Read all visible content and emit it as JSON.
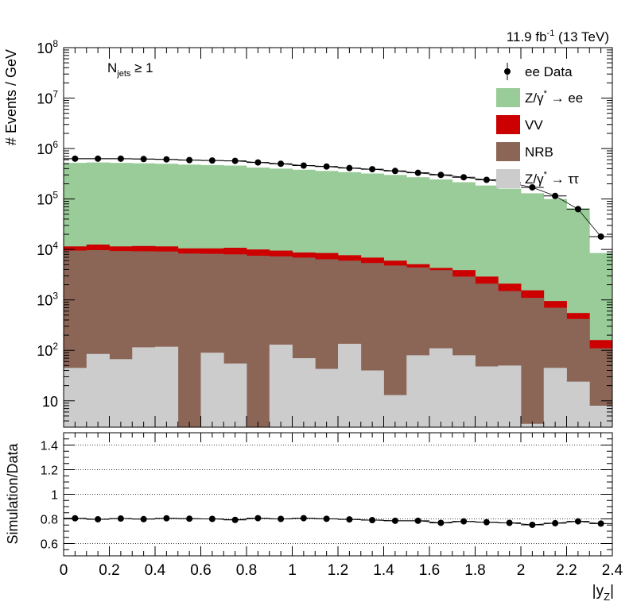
{
  "chart_data": [
    {
      "type": "bar",
      "stacked": true,
      "y_scale": "log",
      "ylim": [
        3,
        100000000
      ],
      "xlim": [
        0,
        2.4
      ],
      "ylabel": "# Events / GeV",
      "lumi_label": "11.9 fb",
      "lumi_sup": "-1",
      "energy_label": "(13 TeV)",
      "selection_label": {
        "main": "N",
        "sub": "jets",
        "rest": " ≥ 1"
      },
      "y_tick_labels": [
        {
          "value": 10,
          "label": "10"
        },
        {
          "value": 100,
          "label": "10",
          "exp": "2"
        },
        {
          "value": 1000,
          "label": "10",
          "exp": "3"
        },
        {
          "value": 10000,
          "label": "10",
          "exp": "4"
        },
        {
          "value": 100000,
          "label": "10",
          "exp": "5"
        },
        {
          "value": 1000000,
          "label": "10",
          "exp": "6"
        },
        {
          "value": 10000000,
          "label": "10",
          "exp": "7"
        },
        {
          "value": 100000000,
          "label": "10",
          "exp": "8"
        }
      ],
      "bin_edges": [
        0,
        0.1,
        0.2,
        0.3,
        0.4,
        0.5,
        0.6,
        0.7,
        0.8,
        0.9,
        1.0,
        1.1,
        1.2,
        1.3,
        1.4,
        1.5,
        1.6,
        1.7,
        1.8,
        1.9,
        2.0,
        2.1,
        2.2,
        2.3,
        2.4
      ],
      "legend": [
        {
          "key": "data",
          "label": "ee Data",
          "style": "marker"
        },
        {
          "key": "zee",
          "label": "Z/γ",
          "sup": "*",
          "tail": " → ee",
          "style": "fill"
        },
        {
          "key": "vv",
          "label": "VV",
          "style": "fill"
        },
        {
          "key": "nrb",
          "label": "NRB",
          "style": "fill"
        },
        {
          "key": "ztt",
          "label": "Z/γ",
          "sup": "*",
          "tail": " → ττ",
          "style": "fill"
        }
      ],
      "stack_totals": {
        "ztt": [
          45,
          85,
          67,
          115,
          118,
          0,
          90,
          55,
          0,
          130,
          70,
          43,
          135,
          40,
          13,
          80,
          110,
          80,
          48,
          50,
          3.5,
          45,
          24,
          8
        ],
        "nrb": [
          9500,
          9700,
          9300,
          9200,
          9100,
          8300,
          8200,
          8000,
          7500,
          7300,
          6900,
          6400,
          6000,
          5400,
          4800,
          4400,
          3900,
          2900,
          2100,
          1500,
          1100,
          700,
          420,
          110
        ],
        "vv": [
          11500,
          12500,
          11500,
          11700,
          11500,
          10500,
          10500,
          10800,
          10000,
          9500,
          8700,
          8500,
          7700,
          6900,
          6000,
          5100,
          4300,
          3900,
          2900,
          2100,
          1550,
          950,
          550,
          160
        ],
        "zee": [
          520000,
          530000,
          520000,
          510000,
          500000,
          480000,
          470000,
          460000,
          420000,
          400000,
          380000,
          360000,
          340000,
          320000,
          300000,
          270000,
          245000,
          215000,
          185000,
          160000,
          130000,
          100000,
          65000,
          8500
        ]
      },
      "colors": {
        "zee": "#99cc99",
        "vv": "#cc0000",
        "nrb": "#8b6556",
        "ztt": "#cccccc",
        "data": "#000000"
      },
      "data_points": {
        "x": [
          0.05,
          0.15,
          0.25,
          0.35,
          0.45,
          0.55,
          0.65,
          0.75,
          0.85,
          0.95,
          1.05,
          1.15,
          1.25,
          1.35,
          1.45,
          1.55,
          1.65,
          1.75,
          1.85,
          1.95,
          2.05,
          2.15,
          2.25,
          2.35
        ],
        "y": [
          630000,
          630000,
          630000,
          620000,
          610000,
          590000,
          580000,
          570000,
          530000,
          500000,
          460000,
          440000,
          410000,
          390000,
          360000,
          330000,
          300000,
          270000,
          240000,
          210000,
          170000,
          115000,
          63000,
          18000
        ]
      }
    },
    {
      "type": "scatter",
      "ylabel": "Simulation/Data",
      "xlabel": "|y",
      "xlabel_sub": "Z",
      "xlabel_tail": "|",
      "xlim": [
        0,
        2.4
      ],
      "ylim": [
        0.5,
        1.5
      ],
      "grid_lines": [
        0.6,
        0.8,
        1.0,
        1.2,
        1.4
      ],
      "y_tick_labels": [
        "0.6",
        "0.8",
        "1",
        "1.2",
        "1.4"
      ],
      "x_tick_labels": [
        "0",
        "0.2",
        "0.4",
        "0.6",
        "0.8",
        "1",
        "1.2",
        "1.4",
        "1.6",
        "1.8",
        "2",
        "2.2",
        "2.4"
      ],
      "x": [
        0.05,
        0.15,
        0.25,
        0.35,
        0.45,
        0.55,
        0.65,
        0.75,
        0.85,
        0.95,
        1.05,
        1.15,
        1.25,
        1.35,
        1.45,
        1.55,
        1.65,
        1.75,
        1.85,
        1.95,
        2.05,
        2.15,
        2.25,
        2.35
      ],
      "y": [
        0.805,
        0.797,
        0.803,
        0.798,
        0.805,
        0.802,
        0.8,
        0.792,
        0.806,
        0.8,
        0.806,
        0.801,
        0.796,
        0.79,
        0.785,
        0.785,
        0.768,
        0.78,
        0.773,
        0.768,
        0.752,
        0.765,
        0.78,
        0.762
      ]
    }
  ]
}
